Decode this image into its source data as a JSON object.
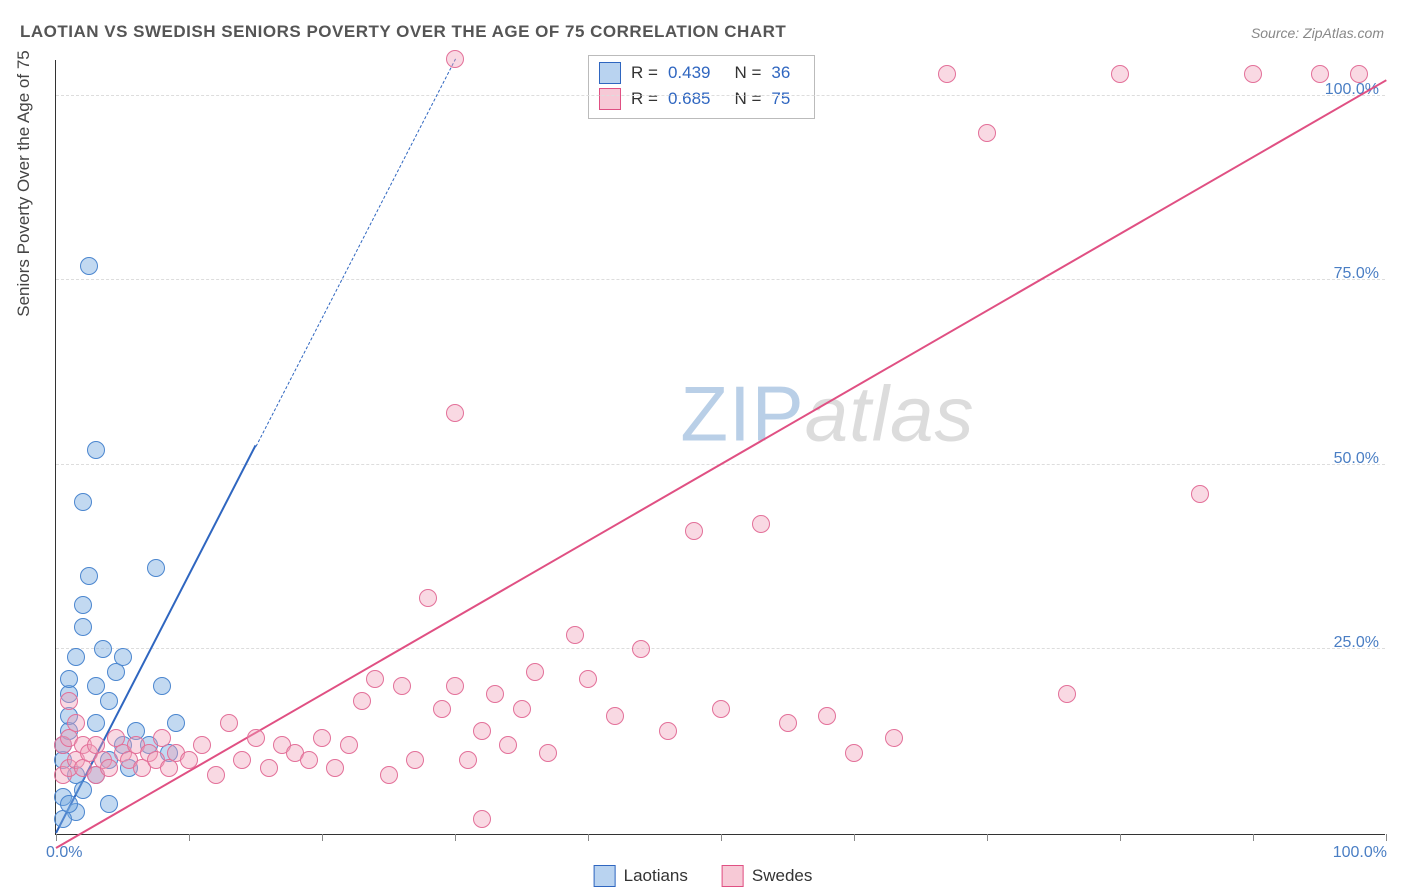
{
  "title": "LAOTIAN VS SWEDISH SENIORS POVERTY OVER THE AGE OF 75 CORRELATION CHART",
  "source": "Source: ZipAtlas.com",
  "y_axis_title": "Seniors Poverty Over the Age of 75",
  "watermark": "ZIPatlas",
  "chart": {
    "type": "scatter",
    "background_color": "#ffffff",
    "grid_color": "#dddddd",
    "axis_color": "#333333",
    "xlim": [
      0,
      100
    ],
    "ylim": [
      0,
      105
    ],
    "x_ticks": [
      0,
      10,
      20,
      30,
      40,
      50,
      60,
      70,
      80,
      90,
      100
    ],
    "y_gridlines": [
      25,
      50,
      75,
      100
    ],
    "y_tick_labels": [
      "25.0%",
      "50.0%",
      "75.0%",
      "100.0%"
    ],
    "x_origin_label": "0.0%",
    "x_max_label": "100.0%",
    "tick_label_color": "#4a7ec4",
    "tick_label_fontsize": 16,
    "axis_title_fontsize": 17,
    "title_fontsize": 17,
    "marker_radius": 9,
    "marker_border_width": 1.3,
    "trend_line_width": 2.5
  },
  "legend_top": {
    "rows": [
      {
        "swatch_fill": "#b9d3f0",
        "swatch_border": "#2f66c0",
        "r_label": "R =",
        "r": "0.439",
        "n_label": "N =",
        "n": "36"
      },
      {
        "swatch_fill": "#f7c9d6",
        "swatch_border": "#e05083",
        "r_label": "R =",
        "r": "0.685",
        "n_label": "N =",
        "n": "75"
      }
    ]
  },
  "legend_bottom": {
    "items": [
      {
        "swatch_fill": "#b9d3f0",
        "swatch_border": "#2f66c0",
        "label": "Laotians"
      },
      {
        "swatch_fill": "#f7c9d6",
        "swatch_border": "#e05083",
        "label": "Swedes"
      }
    ]
  },
  "series": [
    {
      "name": "Laotians",
      "marker_fill": "rgba(120,170,225,0.45)",
      "marker_border": "#4b86cf",
      "trend_color": "#2f66c0",
      "trend_solid_to_x": 15,
      "trend": {
        "x1": 0,
        "y1": 0,
        "x2": 30,
        "y2": 105
      },
      "points": [
        [
          0.5,
          5
        ],
        [
          0.5,
          10
        ],
        [
          0.5,
          12
        ],
        [
          1,
          14
        ],
        [
          1,
          16
        ],
        [
          1,
          19
        ],
        [
          1,
          21
        ],
        [
          1.5,
          24
        ],
        [
          1.5,
          8
        ],
        [
          2,
          28
        ],
        [
          2,
          31
        ],
        [
          2.5,
          35
        ],
        [
          3,
          15
        ],
        [
          3,
          20
        ],
        [
          3.5,
          25
        ],
        [
          4,
          18
        ],
        [
          4,
          10
        ],
        [
          4.5,
          22
        ],
        [
          5,
          12
        ],
        [
          5,
          24
        ],
        [
          5.5,
          9
        ],
        [
          6,
          14
        ],
        [
          7,
          12
        ],
        [
          7.5,
          36
        ],
        [
          8,
          20
        ],
        [
          8.5,
          11
        ],
        [
          9,
          15
        ],
        [
          2,
          45
        ],
        [
          3,
          52
        ],
        [
          2.5,
          77
        ],
        [
          1.5,
          3
        ],
        [
          2,
          6
        ],
        [
          3,
          8
        ],
        [
          0.5,
          2
        ],
        [
          1,
          4
        ],
        [
          4,
          4
        ]
      ]
    },
    {
      "name": "Swedes",
      "marker_fill": "rgba(240,160,185,0.40)",
      "marker_border": "#e37099",
      "trend_color": "#e05083",
      "trend_solid_to_x": 100,
      "trend": {
        "x1": 0,
        "y1": -2,
        "x2": 100,
        "y2": 102
      },
      "points": [
        [
          0.5,
          8
        ],
        [
          0.5,
          12
        ],
        [
          1,
          9
        ],
        [
          1,
          13
        ],
        [
          1.5,
          10
        ],
        [
          1.5,
          15
        ],
        [
          2,
          9
        ],
        [
          2,
          12
        ],
        [
          2.5,
          11
        ],
        [
          3,
          8
        ],
        [
          3,
          12
        ],
        [
          3.5,
          10
        ],
        [
          4,
          9
        ],
        [
          4.5,
          13
        ],
        [
          5,
          11
        ],
        [
          5.5,
          10
        ],
        [
          6,
          12
        ],
        [
          6.5,
          9
        ],
        [
          7,
          11
        ],
        [
          7.5,
          10
        ],
        [
          8,
          13
        ],
        [
          8.5,
          9
        ],
        [
          9,
          11
        ],
        [
          10,
          10
        ],
        [
          11,
          12
        ],
        [
          12,
          8
        ],
        [
          13,
          15
        ],
        [
          14,
          10
        ],
        [
          15,
          13
        ],
        [
          16,
          9
        ],
        [
          17,
          12
        ],
        [
          18,
          11
        ],
        [
          19,
          10
        ],
        [
          20,
          13
        ],
        [
          21,
          9
        ],
        [
          22,
          12
        ],
        [
          23,
          18
        ],
        [
          24,
          21
        ],
        [
          25,
          8
        ],
        [
          26,
          20
        ],
        [
          27,
          10
        ],
        [
          28,
          32
        ],
        [
          29,
          17
        ],
        [
          30,
          20
        ],
        [
          30,
          57
        ],
        [
          31,
          10
        ],
        [
          32,
          14
        ],
        [
          32,
          2
        ],
        [
          33,
          19
        ],
        [
          34,
          12
        ],
        [
          35,
          17
        ],
        [
          36,
          22
        ],
        [
          37,
          11
        ],
        [
          39,
          27
        ],
        [
          40,
          21
        ],
        [
          42,
          16
        ],
        [
          44,
          25
        ],
        [
          46,
          14
        ],
        [
          48,
          41
        ],
        [
          50,
          17
        ],
        [
          53,
          42
        ],
        [
          55,
          15
        ],
        [
          58,
          16
        ],
        [
          60,
          11
        ],
        [
          63,
          13
        ],
        [
          67,
          103
        ],
        [
          70,
          95
        ],
        [
          76,
          19
        ],
        [
          80,
          103
        ],
        [
          86,
          46
        ],
        [
          90,
          103
        ],
        [
          95,
          103
        ],
        [
          98,
          103
        ],
        [
          30,
          105
        ],
        [
          1,
          18
        ]
      ]
    }
  ]
}
